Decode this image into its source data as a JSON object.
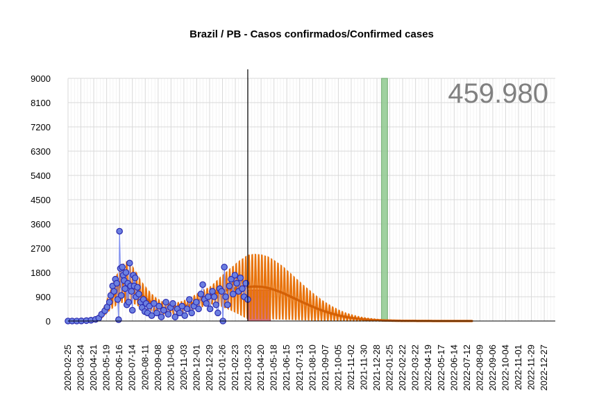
{
  "chart_data": {
    "type": "line",
    "title": "Brazil / PB - Casos confirmados/Confirmed cases",
    "total_label": "459.980",
    "xlabel": "",
    "ylabel": "",
    "ylim": [
      0,
      9000
    ],
    "y_ticks": [
      "0",
      "900",
      "1800",
      "2700",
      "3600",
      "4500",
      "5400",
      "6300",
      "7200",
      "8100",
      "9000"
    ],
    "x_range": [
      "2020-02-25",
      "2023-01-20"
    ],
    "x_ticks": [
      "2020-02-25",
      "2020-03-24",
      "2020-04-21",
      "2020-05-19",
      "2020-06-16",
      "2020-07-14",
      "2020-08-11",
      "2020-09-08",
      "2020-10-06",
      "2020-11-03",
      "2020-12-01",
      "2020-12-29",
      "2021-01-26",
      "2021-02-23",
      "2021-03-23",
      "2021-04-20",
      "2021-05-18",
      "2021-06-15",
      "2021-07-13",
      "2021-08-10",
      "2021-09-07",
      "2021-10-05",
      "2021-11-02",
      "2021-11-30",
      "2021-12-28",
      "2022-01-25",
      "2022-02-22",
      "2022-03-22",
      "2022-04-19",
      "2022-05-17",
      "2022-06-14",
      "2022-07-12",
      "2022-08-09",
      "2022-09-06",
      "2022-10-04",
      "2022-11-01",
      "2022-11-29",
      "2022-12-27"
    ],
    "grid": true,
    "colors": {
      "observed": "#2b2bb0",
      "observed_fill": "#6b7fe0",
      "fit": "#e8730c",
      "red_band": "#d0505a",
      "green_band": "#8fc98f",
      "now_line": "#000000"
    },
    "vertical_line_date": "2021-03-22",
    "red_band": {
      "start": "2021-03-22",
      "end": "2021-05-10",
      "value": 1150
    },
    "green_band": {
      "start": "2022-01-07",
      "end": "2022-01-20",
      "value": 9000
    },
    "observed_points": [
      [
        "2020-02-25",
        0
      ],
      [
        "2020-03-05",
        0
      ],
      [
        "2020-03-15",
        0
      ],
      [
        "2020-03-25",
        5
      ],
      [
        "2020-04-05",
        15
      ],
      [
        "2020-04-15",
        30
      ],
      [
        "2020-04-25",
        60
      ],
      [
        "2020-05-02",
        110
      ],
      [
        "2020-05-08",
        250
      ],
      [
        "2020-05-15",
        380
      ],
      [
        "2020-05-20",
        520
      ],
      [
        "2020-05-25",
        700
      ],
      [
        "2020-05-28",
        950
      ],
      [
        "2020-06-01",
        1300
      ],
      [
        "2020-06-04",
        1100
      ],
      [
        "2020-06-07",
        1550
      ],
      [
        "2020-06-10",
        1400
      ],
      [
        "2020-06-12",
        800
      ],
      [
        "2020-06-14",
        50
      ],
      [
        "2020-06-16",
        3330
      ],
      [
        "2020-06-18",
        1950
      ],
      [
        "2020-06-20",
        950
      ],
      [
        "2020-06-22",
        2000
      ],
      [
        "2020-06-24",
        1700
      ],
      [
        "2020-06-26",
        1500
      ],
      [
        "2020-06-28",
        1200
      ],
      [
        "2020-06-30",
        1800
      ],
      [
        "2020-07-02",
        600
      ],
      [
        "2020-07-04",
        1400
      ],
      [
        "2020-07-06",
        700
      ],
      [
        "2020-07-08",
        2150
      ],
      [
        "2020-07-10",
        1300
      ],
      [
        "2020-07-12",
        1100
      ],
      [
        "2020-07-14",
        400
      ],
      [
        "2020-07-16",
        1700
      ],
      [
        "2020-07-18",
        1300
      ],
      [
        "2020-07-20",
        1600
      ],
      [
        "2020-07-22",
        900
      ],
      [
        "2020-07-25",
        1250
      ],
      [
        "2020-07-28",
        1000
      ],
      [
        "2020-08-01",
        700
      ],
      [
        "2020-08-04",
        500
      ],
      [
        "2020-08-07",
        800
      ],
      [
        "2020-08-10",
        350
      ],
      [
        "2020-08-13",
        650
      ],
      [
        "2020-08-16",
        300
      ],
      [
        "2020-08-20",
        550
      ],
      [
        "2020-08-25",
        200
      ],
      [
        "2020-08-30",
        650
      ],
      [
        "2020-09-05",
        300
      ],
      [
        "2020-09-10",
        550
      ],
      [
        "2020-09-15",
        150
      ],
      [
        "2020-09-20",
        400
      ],
      [
        "2020-09-25",
        700
      ],
      [
        "2020-09-30",
        250
      ],
      [
        "2020-10-05",
        500
      ],
      [
        "2020-10-10",
        650
      ],
      [
        "2020-10-15",
        150
      ],
      [
        "2020-10-20",
        450
      ],
      [
        "2020-10-25",
        300
      ],
      [
        "2020-10-30",
        550
      ],
      [
        "2020-11-05",
        200
      ],
      [
        "2020-11-10",
        450
      ],
      [
        "2020-11-15",
        800
      ],
      [
        "2020-11-20",
        300
      ],
      [
        "2020-11-25",
        550
      ],
      [
        "2020-11-30",
        700
      ],
      [
        "2020-12-05",
        450
      ],
      [
        "2020-12-10",
        1000
      ],
      [
        "2020-12-14",
        1350
      ],
      [
        "2020-12-18",
        800
      ],
      [
        "2020-12-22",
        650
      ],
      [
        "2020-12-26",
        900
      ],
      [
        "2020-12-30",
        450
      ],
      [
        "2021-01-04",
        1100
      ],
      [
        "2021-01-08",
        900
      ],
      [
        "2021-01-12",
        600
      ],
      [
        "2021-01-16",
        300
      ],
      [
        "2021-01-20",
        1200
      ],
      [
        "2021-01-24",
        1100
      ],
      [
        "2021-01-27",
        0
      ],
      [
        "2021-01-30",
        2000
      ],
      [
        "2021-02-02",
        900
      ],
      [
        "2021-02-06",
        600
      ],
      [
        "2021-02-10",
        1300
      ],
      [
        "2021-02-14",
        1550
      ],
      [
        "2021-02-18",
        1000
      ],
      [
        "2021-02-22",
        1700
      ],
      [
        "2021-02-26",
        1400
      ],
      [
        "2021-03-02",
        1100
      ],
      [
        "2021-03-06",
        1600
      ],
      [
        "2021-03-10",
        1200
      ],
      [
        "2021-03-14",
        900
      ],
      [
        "2021-03-18",
        1400
      ],
      [
        "2021-03-22",
        800
      ]
    ],
    "fit_curve": [
      [
        "2020-02-25",
        0
      ],
      [
        "2020-04-01",
        10
      ],
      [
        "2020-04-20",
        40
      ],
      [
        "2020-05-01",
        100
      ],
      [
        "2020-05-10",
        250
      ],
      [
        "2020-05-20",
        550
      ],
      [
        "2020-06-01",
        900
      ],
      [
        "2020-06-10",
        1150
      ],
      [
        "2020-06-20",
        1350
      ],
      [
        "2020-07-01",
        1450
      ],
      [
        "2020-07-10",
        1400
      ],
      [
        "2020-07-20",
        1250
      ],
      [
        "2020-08-01",
        1000
      ],
      [
        "2020-08-15",
        800
      ],
      [
        "2020-09-01",
        600
      ],
      [
        "2020-09-20",
        470
      ],
      [
        "2020-10-10",
        450
      ],
      [
        "2020-11-01",
        520
      ],
      [
        "2020-11-20",
        640
      ],
      [
        "2020-12-10",
        800
      ],
      [
        "2021-01-01",
        960
      ],
      [
        "2021-01-20",
        1080
      ],
      [
        "2021-02-10",
        1170
      ],
      [
        "2021-03-01",
        1230
      ],
      [
        "2021-03-22",
        1260
      ],
      [
        "2021-04-05",
        1280
      ],
      [
        "2021-04-20",
        1270
      ],
      [
        "2021-05-05",
        1230
      ],
      [
        "2021-05-20",
        1150
      ],
      [
        "2021-06-05",
        1050
      ],
      [
        "2021-06-20",
        930
      ],
      [
        "2021-07-05",
        810
      ],
      [
        "2021-07-20",
        690
      ],
      [
        "2021-08-05",
        570
      ],
      [
        "2021-08-20",
        460
      ],
      [
        "2021-09-05",
        360
      ],
      [
        "2021-09-20",
        280
      ],
      [
        "2021-10-05",
        210
      ],
      [
        "2021-10-20",
        155
      ],
      [
        "2021-11-05",
        110
      ],
      [
        "2021-11-20",
        78
      ],
      [
        "2021-12-05",
        55
      ],
      [
        "2021-12-20",
        38
      ],
      [
        "2022-01-05",
        26
      ],
      [
        "2022-01-20",
        18
      ],
      [
        "2022-02-05",
        12
      ],
      [
        "2022-02-20",
        8
      ],
      [
        "2022-03-10",
        5
      ],
      [
        "2022-04-01",
        3
      ],
      [
        "2022-05-01",
        1
      ],
      [
        "2022-06-01",
        0
      ],
      [
        "2022-07-25",
        0
      ]
    ],
    "fit_amplitude": [
      [
        "2020-05-20",
        0.45
      ],
      [
        "2020-07-01",
        0.55
      ],
      [
        "2021-01-01",
        0.35
      ],
      [
        "2021-03-22",
        1.0
      ],
      [
        "2022-07-25",
        1.0
      ]
    ]
  }
}
